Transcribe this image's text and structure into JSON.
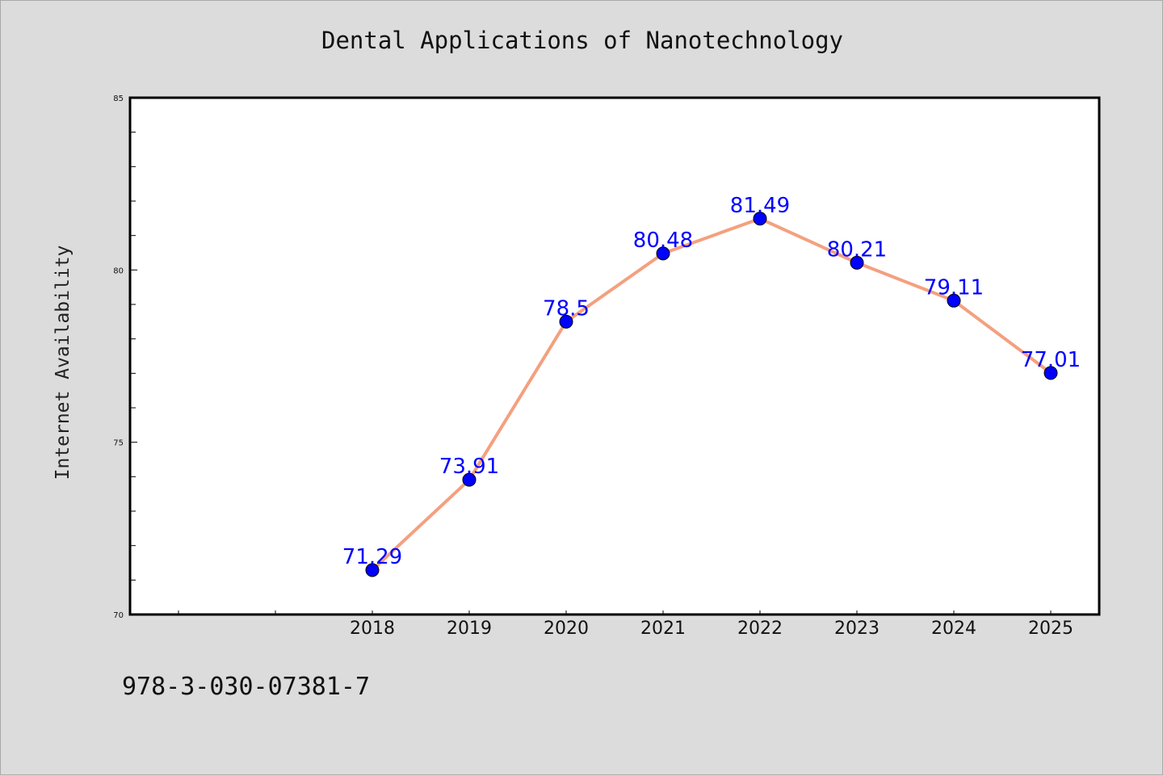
{
  "title": "Dental Applications of Nanotechnology",
  "ylabel": "Internet Availability",
  "footnote": "978-3-030-07381-7",
  "chart_data": {
    "type": "line",
    "title": "Dental Applications of Nanotechnology",
    "xlabel": "",
    "ylabel": "Internet Availability",
    "categories": [
      "2018",
      "2019",
      "2020",
      "2021",
      "2022",
      "2023",
      "2024",
      "2025"
    ],
    "values": [
      71.29,
      73.91,
      78.5,
      80.48,
      81.49,
      80.21,
      79.11,
      77.01
    ],
    "data_labels": [
      "71.29",
      "73.91",
      "78.5",
      "80.48",
      "81.49",
      "80.21",
      "79.11",
      "77.01"
    ],
    "ylim": [
      70,
      85
    ],
    "yticks": [
      70,
      75,
      80,
      85
    ],
    "ytick_labels": [
      "70",
      "75",
      "80",
      "85"
    ],
    "grid": false,
    "legend": "none",
    "colors": {
      "line": "#f4a07f",
      "marker": "#0000ff",
      "label": "#0000ff",
      "plot_background": "#ffffff",
      "figure_background": "#dcdcdc"
    }
  }
}
